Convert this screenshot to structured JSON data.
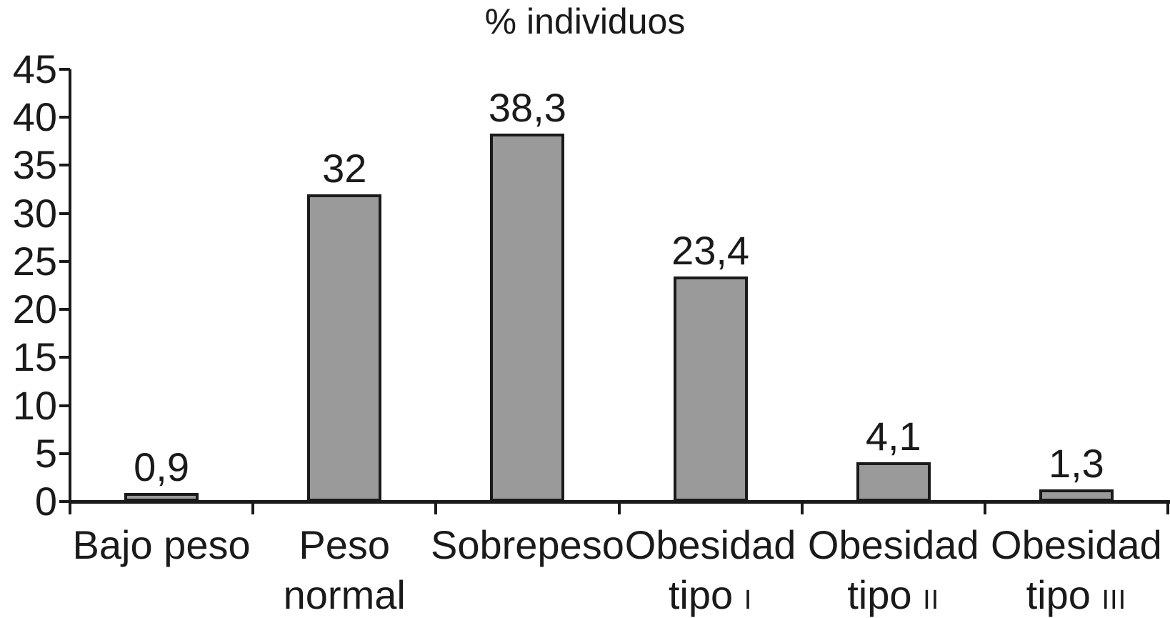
{
  "chart_data": {
    "type": "bar",
    "title": "% individuos",
    "xlabel": "",
    "ylabel": "",
    "categories": [
      "Bajo peso",
      "Peso normal",
      "Sobrepeso",
      "Obesidad tipo I",
      "Obesidad tipo II",
      "Obesidad tipo III"
    ],
    "values": [
      0.9,
      32,
      38.3,
      23.4,
      4.1,
      1.3
    ],
    "value_labels": [
      "0,9",
      "32",
      "38,3",
      "23,4",
      "4,1",
      "1,3"
    ],
    "categories_display": [
      {
        "lines": [
          {
            "text": "Bajo peso"
          }
        ]
      },
      {
        "lines": [
          {
            "text": "Peso"
          },
          {
            "text": "normal"
          }
        ]
      },
      {
        "lines": [
          {
            "text": "Sobrepeso"
          }
        ]
      },
      {
        "lines": [
          {
            "text": "Obesidad"
          },
          {
            "text": "tipo",
            "roman": "I"
          }
        ]
      },
      {
        "lines": [
          {
            "text": "Obesidad"
          },
          {
            "text": "tipo",
            "roman": "II"
          }
        ]
      },
      {
        "lines": [
          {
            "text": "Obesidad"
          },
          {
            "text": "tipo",
            "roman": "III"
          }
        ]
      }
    ],
    "ylim": [
      0,
      45
    ],
    "yticks": [
      0,
      5,
      10,
      15,
      20,
      25,
      30,
      35,
      40,
      45
    ],
    "grid": false,
    "legend": null,
    "colors": {
      "bar_fill": "#9a9a9a",
      "bar_border": "#1a1a1a",
      "axis": "#1a1a1a",
      "text": "#1a1a1a",
      "background": "#ffffff"
    }
  }
}
